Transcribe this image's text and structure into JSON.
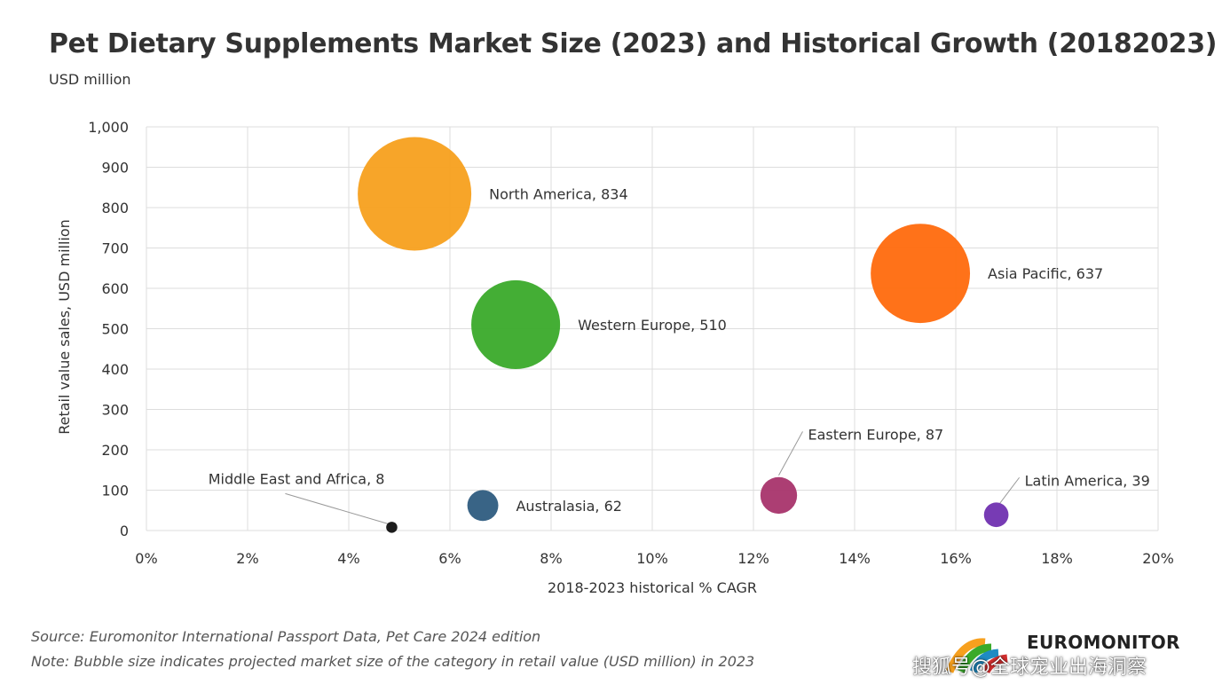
{
  "title": "Pet Dietary Supplements Market Size (2023) and Historical Growth (20182023)",
  "subtitle": "USD million",
  "source": "Source: Euromonitor International Passport Data, Pet Care 2024 edition",
  "note": "Note: Bubble size indicates projected market size of the category in retail value (USD million) in 2023",
  "logo_text": "EUROMONITOR",
  "watermark": "搜狐号@全球宠业出海洞察",
  "chart_data": {
    "type": "scatter",
    "xlabel": "2018-2023 historical % CAGR",
    "ylabel": "Retail value sales, USD million",
    "xlim": [
      0,
      20
    ],
    "ylim": [
      0,
      1000
    ],
    "x_ticks": [
      "0%",
      "2%",
      "4%",
      "6%",
      "8%",
      "10%",
      "12%",
      "14%",
      "16%",
      "18%",
      "20%"
    ],
    "y_ticks": [
      "0",
      "100",
      "200",
      "300",
      "400",
      "500",
      "600",
      "700",
      "800",
      "900",
      "1,000"
    ],
    "grid": true,
    "points": [
      {
        "region": "North America",
        "x": 5.3,
        "y": 834,
        "label": "North America, 834",
        "color": "#F7A01E"
      },
      {
        "region": "Asia Pacific",
        "x": 15.3,
        "y": 637,
        "label": "Asia Pacific, 637",
        "color": "#FF6A0D"
      },
      {
        "region": "Western Europe",
        "x": 7.3,
        "y": 510,
        "label": "Western Europe, 510",
        "color": "#3AAA2A"
      },
      {
        "region": "Eastern Europe",
        "x": 12.5,
        "y": 87,
        "label": "Eastern Europe, 87",
        "color": "#A8346B"
      },
      {
        "region": "Australasia",
        "x": 6.65,
        "y": 62,
        "label": "Australasia, 62",
        "color": "#2E5C80"
      },
      {
        "region": "Latin America",
        "x": 16.8,
        "y": 39,
        "label": "Latin America, 39",
        "color": "#7030B0"
      },
      {
        "region": "Middle East and Africa",
        "x": 4.85,
        "y": 8,
        "label": "Middle East and Africa, 8",
        "color": "#111111"
      }
    ]
  }
}
